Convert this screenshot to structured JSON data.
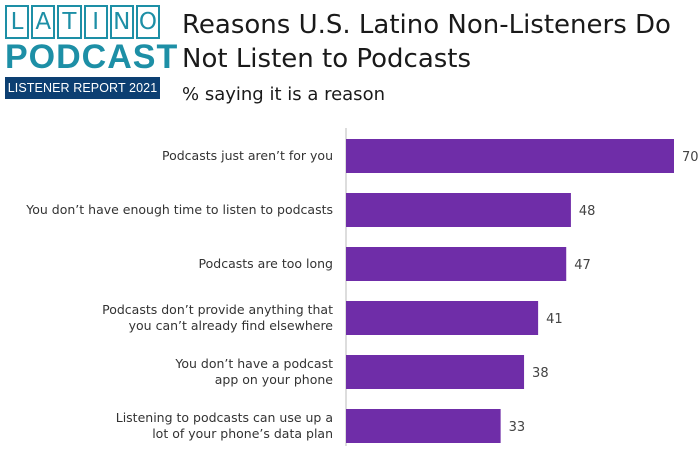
{
  "logo": {
    "letters": [
      "L",
      "A",
      "T",
      "I",
      "N",
      "O"
    ],
    "podcast": "PODCAST",
    "report": "LISTENER REPORT 2021"
  },
  "colors": {
    "bar": "#6f2da8",
    "axis": "#bbbbbb",
    "brand_teal": "#1d8fa6",
    "brand_navy": "#0c3f72"
  },
  "chart_data": {
    "type": "bar",
    "orientation": "horizontal",
    "title": "Reasons U.S. Latino Non-Listeners Do Not Listen to Podcasts",
    "subtitle": "% saying it is a reason",
    "categories": [
      [
        "Podcasts just aren’t for you"
      ],
      [
        "You don’t have enough time to listen to podcasts"
      ],
      [
        "Podcasts are too long"
      ],
      [
        "Podcasts don’t provide anything that",
        "you can’t already find elsewhere"
      ],
      [
        "You don’t have a podcast",
        "app on your phone"
      ],
      [
        "Listening to podcasts can use up a",
        "lot of your phone’s data plan"
      ]
    ],
    "values": [
      70,
      48,
      47,
      41,
      38,
      33
    ],
    "xlim": [
      0,
      70
    ],
    "grid": false,
    "legend": "none"
  }
}
